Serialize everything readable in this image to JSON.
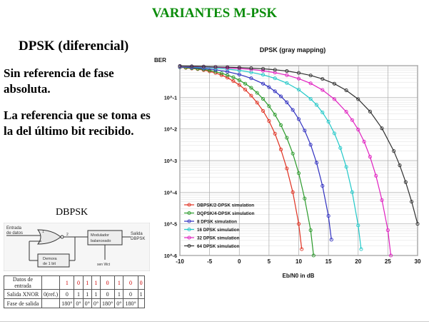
{
  "slide": {
    "title": "VARIANTES M-PSK",
    "subtitle": "DPSK (diferencial)",
    "para1": "Sin referencia de fase absoluta.",
    "para2": "La referencia que se toma es la del último bit recibido.",
    "dbpsk_label": "DBPSK"
  },
  "diagram": {
    "input_label_1": "Entrada",
    "input_label_2": "de datos",
    "modulator_1": "Modulador",
    "modulator_2": "balanceado",
    "output_label_1": "Salida",
    "output_label_2": "DBPSK",
    "delay_1": "Demora",
    "delay_2": "de 1 bit",
    "carrier": "sen Wct",
    "in_num": "1",
    "out_num": "2"
  },
  "table": {
    "row1": [
      "Datos de entrada",
      "",
      "1",
      "0",
      "1",
      "1",
      "0",
      "1",
      "0",
      "0"
    ],
    "row2": [
      "Salida XNOR",
      "0(ref.)",
      "0",
      "1",
      "1",
      "1",
      "0",
      "1",
      "0",
      "1"
    ],
    "row3": [
      "Fase de salida",
      "",
      "180°",
      "0°",
      "0°",
      "0°",
      "180°",
      "0°",
      "180°",
      ""
    ]
  },
  "chart_data": {
    "type": "line",
    "title": "DPSK (gray mapping)",
    "ylabel": "BER",
    "xlabel": "Eb/N0 in dB",
    "xlim": [
      -10,
      30
    ],
    "y_log": true,
    "ylim_log10": [
      -6,
      0
    ],
    "x_ticks": [
      "-10",
      "-5",
      "0",
      "5",
      "10",
      "15",
      "20",
      "25",
      "30"
    ],
    "y_ticks": [
      "10^-1",
      "10^-2",
      "10^-3",
      "10^-4",
      "10^-5",
      "10^-6"
    ],
    "grid": true,
    "legend_position": "bottom-left",
    "series": [
      {
        "name": "DBPSK/2-DPSK simulation",
        "color": "#e03020",
        "x": [
          -10,
          -9,
          -8,
          -7,
          -6,
          -5,
          -4,
          -3,
          -2,
          -1,
          0,
          1,
          2,
          3,
          4,
          5,
          6,
          7,
          8,
          9,
          10,
          10.5
        ],
        "y_log10": [
          -0.05,
          -0.07,
          -0.09,
          -0.11,
          -0.14,
          -0.18,
          -0.23,
          -0.3,
          -0.38,
          -0.49,
          -0.61,
          -0.76,
          -0.95,
          -1.17,
          -1.43,
          -1.75,
          -2.15,
          -2.65,
          -3.25,
          -4.0,
          -5.0,
          -5.8
        ]
      },
      {
        "name": "DQPSK/4-DPSK simulation",
        "color": "#2a9a2a",
        "x": [
          -10,
          -9,
          -8,
          -7,
          -6,
          -5,
          -4,
          -3,
          -2,
          -1,
          0,
          1,
          2,
          3,
          4,
          5,
          6,
          7,
          8,
          9,
          10,
          11,
          12,
          12.5
        ],
        "y_log10": [
          -0.05,
          -0.06,
          -0.08,
          -0.1,
          -0.12,
          -0.15,
          -0.19,
          -0.24,
          -0.3,
          -0.37,
          -0.46,
          -0.57,
          -0.7,
          -0.86,
          -1.05,
          -1.28,
          -1.55,
          -1.88,
          -2.28,
          -2.78,
          -3.4,
          -4.2,
          -5.2,
          -6.0
        ]
      },
      {
        "name": "8 DPSK simulation",
        "color": "#3030c0",
        "x": [
          -10,
          -8,
          -6,
          -4,
          -2,
          0,
          2,
          4,
          5,
          6,
          7,
          8,
          9,
          10,
          11,
          12,
          13,
          14,
          15,
          15.5
        ],
        "y_log10": [
          -0.04,
          -0.06,
          -0.09,
          -0.13,
          -0.19,
          -0.28,
          -0.4,
          -0.57,
          -0.68,
          -0.81,
          -0.97,
          -1.16,
          -1.4,
          -1.69,
          -2.05,
          -2.5,
          -3.07,
          -3.8,
          -4.75,
          -5.5
        ]
      },
      {
        "name": "16 DPSK simulation",
        "color": "#20c8c8",
        "x": [
          -10,
          -8,
          -6,
          -4,
          -2,
          0,
          2,
          4,
          6,
          8,
          10,
          12,
          13,
          14,
          15,
          16,
          17,
          18,
          19,
          20,
          20.5
        ],
        "y_log10": [
          -0.03,
          -0.04,
          -0.06,
          -0.08,
          -0.11,
          -0.15,
          -0.21,
          -0.29,
          -0.4,
          -0.55,
          -0.76,
          -1.05,
          -1.24,
          -1.48,
          -1.77,
          -2.14,
          -2.6,
          -3.2,
          -4.0,
          -5.05,
          -5.8
        ]
      },
      {
        "name": "32 DPSK simulation",
        "color": "#e020c0",
        "x": [
          -10,
          -8,
          -6,
          -4,
          -2,
          0,
          2,
          4,
          6,
          8,
          10,
          12,
          14,
          16,
          18,
          19,
          20,
          21,
          22,
          23,
          24,
          25,
          25.5
        ],
        "y_log10": [
          -0.02,
          -0.03,
          -0.04,
          -0.05,
          -0.07,
          -0.09,
          -0.12,
          -0.16,
          -0.22,
          -0.3,
          -0.41,
          -0.56,
          -0.77,
          -1.06,
          -1.46,
          -1.72,
          -2.02,
          -2.4,
          -2.88,
          -3.48,
          -4.25,
          -5.2,
          -6.0
        ]
      },
      {
        "name": "64 DPSK simulation",
        "color": "#303030",
        "x": [
          -10,
          -8,
          -6,
          -4,
          -2,
          0,
          2,
          4,
          6,
          8,
          10,
          12,
          14,
          16,
          18,
          20,
          22,
          24,
          26,
          27,
          28,
          29,
          30
        ],
        "y_log10": [
          -0.01,
          -0.02,
          -0.03,
          -0.04,
          -0.05,
          -0.06,
          -0.08,
          -0.1,
          -0.13,
          -0.17,
          -0.23,
          -0.31,
          -0.42,
          -0.57,
          -0.78,
          -1.06,
          -1.45,
          -1.98,
          -2.7,
          -3.15,
          -3.68,
          -4.3,
          -5.0
        ]
      }
    ]
  }
}
